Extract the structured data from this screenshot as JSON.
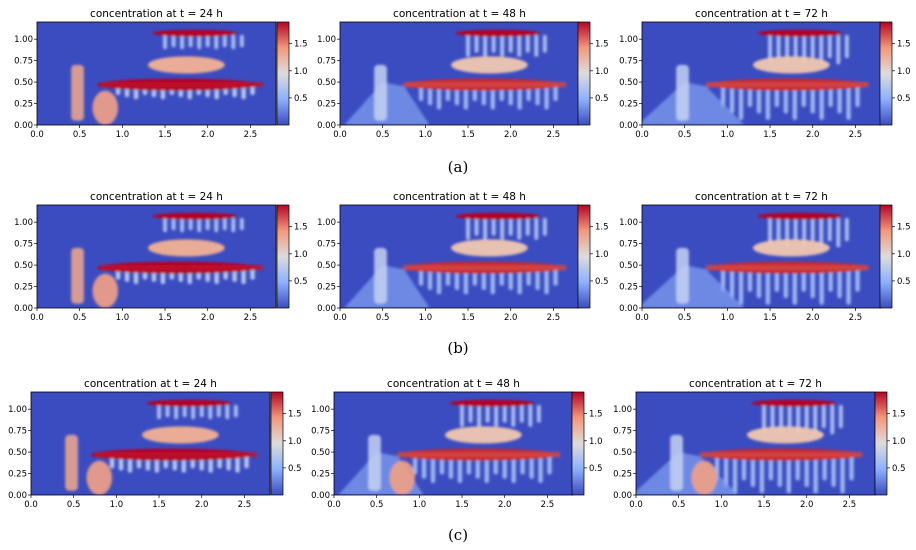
{
  "figure": {
    "captions": [
      "(a)",
      "(b)",
      "(c)"
    ]
  },
  "chart_data": [
    {
      "type": "heatmap",
      "row": 0,
      "col": 0,
      "title": "concentration at t = 24 h",
      "xlim": [
        0,
        2.8
      ],
      "ylim": [
        0,
        1.2
      ],
      "xticks": [
        "0.0",
        "0.5",
        "1.0",
        "1.5",
        "2.0",
        "2.5"
      ],
      "yticks": [
        "0.00",
        "0.25",
        "0.50",
        "0.75",
        "1.00"
      ],
      "colorbar": {
        "range": [
          0,
          1.9
        ],
        "ticks": [
          "0.5",
          "1.0",
          "1.5"
        ]
      }
    },
    {
      "type": "heatmap",
      "row": 0,
      "col": 1,
      "title": "concentration at t = 48 h",
      "xlim": [
        0,
        2.8
      ],
      "ylim": [
        0,
        1.2
      ],
      "xticks": [
        "0.0",
        "0.5",
        "1.0",
        "1.5",
        "2.0",
        "2.5"
      ],
      "yticks": [
        "0.00",
        "0.25",
        "0.50",
        "0.75",
        "1.00"
      ],
      "colorbar": {
        "range": [
          0,
          1.9
        ],
        "ticks": [
          "0.5",
          "1.0",
          "1.5"
        ]
      }
    },
    {
      "type": "heatmap",
      "row": 0,
      "col": 2,
      "title": "concentration at t = 72 h",
      "xlim": [
        0,
        2.8
      ],
      "ylim": [
        0,
        1.2
      ],
      "xticks": [
        "0.0",
        "0.5",
        "1.0",
        "1.5",
        "2.0",
        "2.5"
      ],
      "yticks": [
        "0.00",
        "0.25",
        "0.50",
        "0.75",
        "1.00"
      ],
      "colorbar": {
        "range": [
          0,
          1.9
        ],
        "ticks": [
          "0.5",
          "1.0",
          "1.5"
        ]
      }
    },
    {
      "type": "heatmap",
      "row": 1,
      "col": 0,
      "title": "concentration at t = 24 h",
      "xlim": [
        0,
        2.8
      ],
      "ylim": [
        0,
        1.2
      ],
      "xticks": [
        "0.0",
        "0.5",
        "1.0",
        "1.5",
        "2.0",
        "2.5"
      ],
      "yticks": [
        "0.00",
        "0.25",
        "0.50",
        "0.75",
        "1.00"
      ],
      "colorbar": {
        "range": [
          0,
          1.9
        ],
        "ticks": [
          "0.5",
          "1.0",
          "1.5"
        ]
      }
    },
    {
      "type": "heatmap",
      "row": 1,
      "col": 1,
      "title": "concentration at t = 48 h",
      "xlim": [
        0,
        2.8
      ],
      "ylim": [
        0,
        1.2
      ],
      "xticks": [
        "0.0",
        "0.5",
        "1.0",
        "1.5",
        "2.0",
        "2.5"
      ],
      "yticks": [
        "0.00",
        "0.25",
        "0.50",
        "0.75",
        "1.00"
      ],
      "colorbar": {
        "range": [
          0,
          1.9
        ],
        "ticks": [
          "0.5",
          "1.0",
          "1.5"
        ]
      }
    },
    {
      "type": "heatmap",
      "row": 1,
      "col": 2,
      "title": "concentration at t = 72 h",
      "xlim": [
        0,
        2.8
      ],
      "ylim": [
        0,
        1.2
      ],
      "xticks": [
        "0.0",
        "0.5",
        "1.0",
        "1.5",
        "2.0",
        "2.5"
      ],
      "yticks": [
        "0.00",
        "0.25",
        "0.50",
        "0.75",
        "1.00"
      ],
      "colorbar": {
        "range": [
          0,
          1.9
        ],
        "ticks": [
          "0.5",
          "1.0",
          "1.5"
        ]
      }
    },
    {
      "type": "heatmap",
      "row": 2,
      "col": 0,
      "title": "concentration at t = 24 h",
      "xlim": [
        0,
        2.8
      ],
      "ylim": [
        0,
        1.2
      ],
      "xticks": [
        "0.0",
        "0.5",
        "1.0",
        "1.5",
        "2.0",
        "2.5"
      ],
      "yticks": [
        "0.00",
        "0.25",
        "0.50",
        "0.75",
        "1.00"
      ],
      "colorbar": {
        "range": [
          0,
          1.9
        ],
        "ticks": [
          "0.5",
          "1.0",
          "1.5"
        ]
      }
    },
    {
      "type": "heatmap",
      "row": 2,
      "col": 1,
      "title": "concentration at t = 48 h",
      "xlim": [
        0,
        2.8
      ],
      "ylim": [
        0,
        1.2
      ],
      "xticks": [
        "0.0",
        "0.5",
        "1.0",
        "1.5",
        "2.0",
        "2.5"
      ],
      "yticks": [
        "0.00",
        "0.25",
        "0.50",
        "0.75",
        "1.00"
      ],
      "colorbar": {
        "range": [
          0,
          1.9
        ],
        "ticks": [
          "0.5",
          "1.0",
          "1.5"
        ]
      }
    },
    {
      "type": "heatmap",
      "row": 2,
      "col": 2,
      "title": "concentration at t = 72 h",
      "xlim": [
        0,
        2.8
      ],
      "ylim": [
        0,
        1.2
      ],
      "xticks": [
        "0.0",
        "0.5",
        "1.0",
        "1.5",
        "2.0",
        "2.5"
      ],
      "yticks": [
        "0.00",
        "0.25",
        "0.50",
        "0.75",
        "1.00"
      ],
      "colorbar": {
        "range": [
          0,
          1.9
        ],
        "ticks": [
          "0.5",
          "1.0",
          "1.5"
        ]
      }
    }
  ]
}
